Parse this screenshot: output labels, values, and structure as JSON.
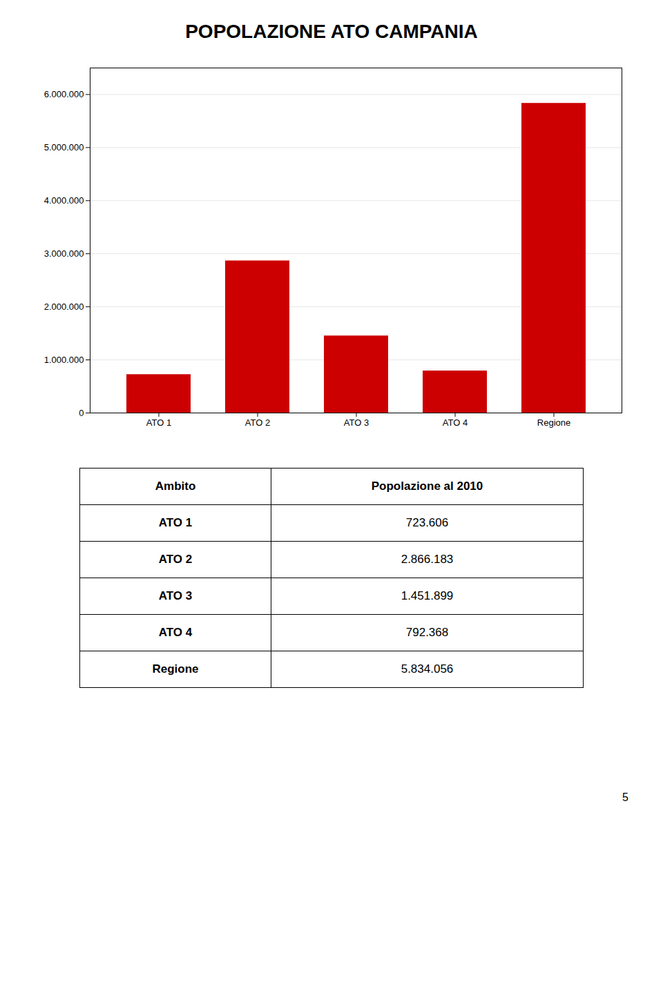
{
  "chart_data": [
    {
      "type": "bar",
      "title": "POPOLAZIONE ATO CAMPANIA",
      "categories": [
        "ATO 1",
        "ATO 2",
        "ATO 3",
        "ATO 4",
        "Regione"
      ],
      "values": [
        723606,
        2866183,
        1451899,
        792368,
        5834056
      ],
      "color": "#cc0000",
      "ylim": [
        0,
        6500000
      ],
      "yticks": [
        0,
        {
          "value": 1000000,
          "label": "1.000.000"
        },
        {
          "value": 2000000,
          "label": "2.000.000"
        },
        {
          "value": 3000000,
          "label": "3.000.000"
        },
        {
          "value": 4000000,
          "label": "4.000.000"
        },
        {
          "value": 5000000,
          "label": "5.000.000"
        },
        {
          "value": 6000000,
          "label": "6.000.000"
        }
      ],
      "grid": true,
      "annotations": [
        "5"
      ]
    },
    {
      "type": "table",
      "xlabel": "Ambito",
      "ylabel": "Popolazione al 2010",
      "categories": [
        "ATO 1",
        "ATO 2",
        "ATO 3",
        "ATO 4",
        "Regione"
      ],
      "values": [
        723606,
        2866183,
        1451899,
        792368,
        5834056
      ],
      "value_labels": [
        "723.606",
        "2.866.183",
        "1.451.899",
        "792.368",
        "5.834.056"
      ]
    }
  ]
}
